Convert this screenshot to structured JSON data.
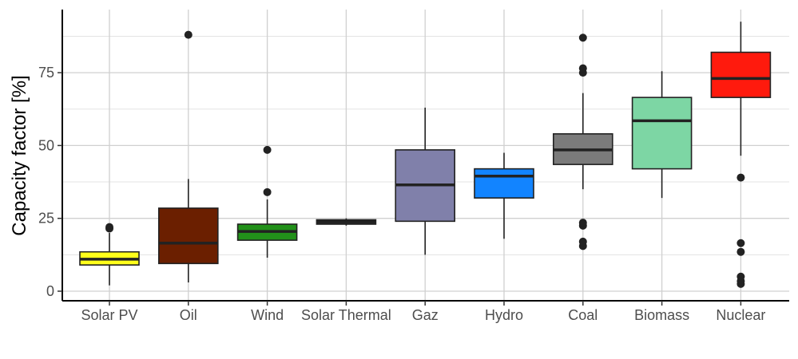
{
  "chart_data": {
    "type": "box",
    "title": "",
    "xlabel": "",
    "ylabel": "Capacity factor [%]",
    "ylim": [
      -2,
      96
    ],
    "yticks": [
      0,
      25,
      50,
      75
    ],
    "grid": "major and minor",
    "legend": "none",
    "categories": [
      "Solar PV",
      "Oil",
      "Wind",
      "Solar Thermal",
      "Gaz",
      "Hydro",
      "Coal",
      "Biomass",
      "Nuclear"
    ],
    "boxes": [
      {
        "category": "Solar PV",
        "color": "#ffff1a",
        "min": 2,
        "q1": 9,
        "median": 11,
        "q3": 13.5,
        "max": 20,
        "outliers": [
          21.5,
          22
        ]
      },
      {
        "category": "Oil",
        "color": "#6b1f00",
        "min": 3,
        "q1": 9.5,
        "median": 16.5,
        "q3": 28.5,
        "max": 38.5,
        "outliers": [
          88
        ]
      },
      {
        "category": "Wind",
        "color": "#22911a",
        "min": 11.5,
        "q1": 17.5,
        "median": 20.5,
        "q3": 23,
        "max": 31.5,
        "outliers": [
          34,
          48.5
        ]
      },
      {
        "category": "Solar Thermal",
        "color": "#1e1e1e",
        "min": 22.5,
        "q1": 23,
        "median": 23.5,
        "q3": 24.5,
        "max": 25,
        "outliers": []
      },
      {
        "category": "Gaz",
        "color": "#8080aa",
        "min": 12.5,
        "q1": 24,
        "median": 36.5,
        "q3": 48.5,
        "max": 63,
        "outliers": []
      },
      {
        "category": "Hydro",
        "color": "#1284ff",
        "min": 18,
        "q1": 32,
        "median": 39.5,
        "q3": 42,
        "max": 47.5,
        "outliers": []
      },
      {
        "category": "Coal",
        "color": "#7b7b7b",
        "min": 35,
        "q1": 43.5,
        "median": 48.5,
        "q3": 54,
        "max": 68,
        "outliers": [
          15.5,
          17,
          22.5,
          23.5,
          75,
          76.5,
          87
        ]
      },
      {
        "category": "Biomass",
        "color": "#7dd6a4",
        "min": 32,
        "q1": 42,
        "median": 58.5,
        "q3": 66.5,
        "max": 75.5,
        "outliers": []
      },
      {
        "category": "Nuclear",
        "color": "#ff1a0d",
        "min": 46.5,
        "q1": 66.5,
        "median": 73,
        "q3": 82,
        "max": 92.5,
        "outliers": [
          2.5,
          3.5,
          5,
          13.5,
          16.5,
          39
        ]
      }
    ]
  }
}
